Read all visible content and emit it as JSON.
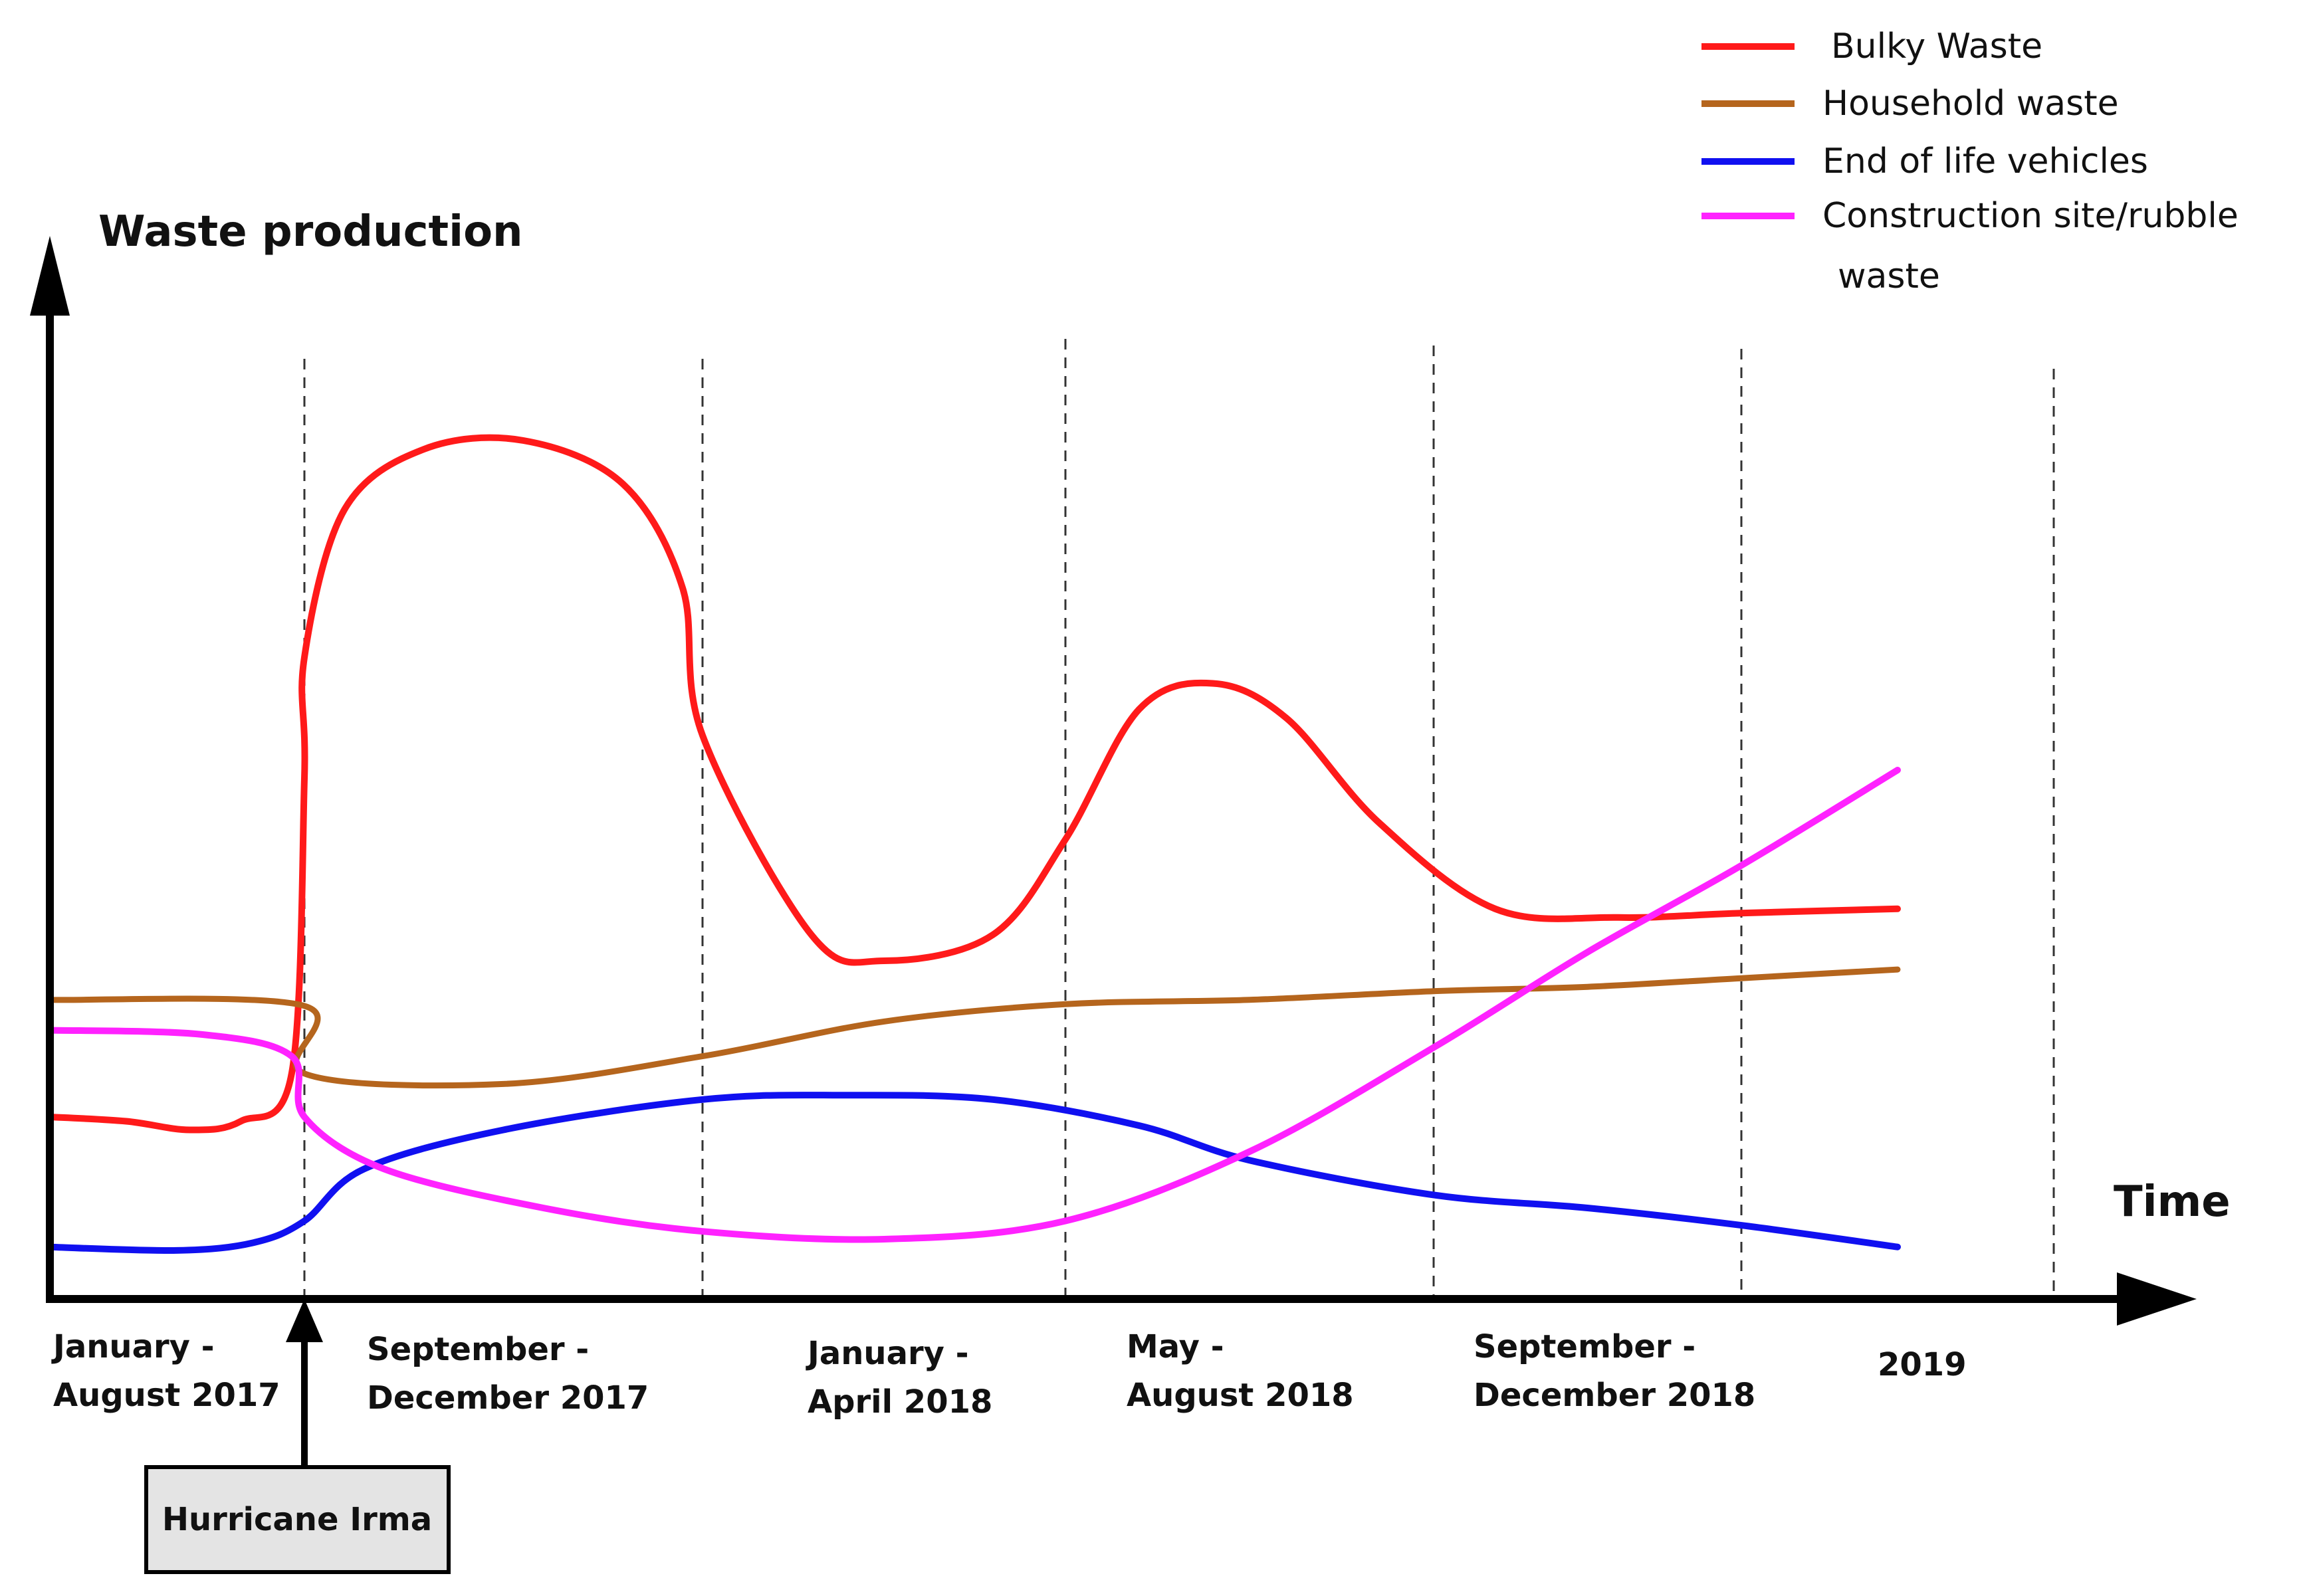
{
  "chart_data": {
    "type": "line",
    "title": "",
    "ylabel": "Waste production",
    "xlabel": "Time",
    "ylim": [
      0,
      100
    ],
    "grid": "vertical dashed separators",
    "legend_position": "top-right",
    "periods": [
      [
        "January -",
        "August 2017"
      ],
      [
        "September -",
        "December 2017"
      ],
      [
        "January -",
        "April 2018"
      ],
      [
        "May -",
        "August 2018"
      ],
      [
        "September -",
        "December 2018"
      ],
      [
        "2019"
      ]
    ],
    "event": {
      "label": "Hurricane Irma",
      "at_boundary": 1
    },
    "series": [
      {
        "name": "Bulky Waste",
        "color": "#ff1a1a",
        "points": [
          [
            0,
            21
          ],
          [
            0.3,
            20.5
          ],
          [
            0.55,
            19.5
          ],
          [
            0.75,
            20.5
          ],
          [
            0.95,
            26
          ],
          [
            1.0,
            60
          ],
          [
            1.0,
            74
          ],
          [
            1.1,
            91
          ],
          [
            1.3,
            98
          ],
          [
            1.55,
            99
          ],
          [
            1.8,
            94
          ],
          [
            1.95,
            82
          ],
          [
            2.0,
            65
          ],
          [
            2.3,
            42
          ],
          [
            2.5,
            39
          ],
          [
            2.8,
            42
          ],
          [
            3.0,
            53
          ],
          [
            3.2,
            68
          ],
          [
            3.4,
            71
          ],
          [
            3.6,
            67
          ],
          [
            3.85,
            55
          ],
          [
            4.2,
            45
          ],
          [
            4.6,
            44
          ],
          [
            5.0,
            44.5
          ],
          [
            5.5,
            45
          ]
        ]
      },
      {
        "name": "Household waste",
        "color": "#b5651d",
        "points": [
          [
            0,
            34.5
          ],
          [
            1.0,
            33.8
          ],
          [
            1.0,
            26
          ],
          [
            1.5,
            24.8
          ],
          [
            2.0,
            28
          ],
          [
            2.5,
            32
          ],
          [
            3.0,
            34
          ],
          [
            3.5,
            34.5
          ],
          [
            4.0,
            35.5
          ],
          [
            4.5,
            36
          ],
          [
            5.0,
            37
          ],
          [
            5.5,
            38
          ]
        ]
      },
      {
        "name": "End of life vehicles",
        "color": "#1010f0",
        "points": [
          [
            0,
            6
          ],
          [
            0.5,
            5.6
          ],
          [
            0.8,
            6.5
          ],
          [
            1.0,
            9
          ],
          [
            1.15,
            15
          ],
          [
            1.5,
            19.5
          ],
          [
            2.0,
            23
          ],
          [
            2.4,
            23.5
          ],
          [
            2.8,
            23
          ],
          [
            3.2,
            20
          ],
          [
            3.5,
            16
          ],
          [
            4.0,
            12
          ],
          [
            4.5,
            10.5
          ],
          [
            5.0,
            8.5
          ],
          [
            5.5,
            6
          ]
        ]
      },
      {
        "name": "Construction site/rubble waste",
        "color": "#ff22ff",
        "points": [
          [
            0,
            31
          ],
          [
            0.6,
            30.5
          ],
          [
            0.95,
            28
          ],
          [
            1.0,
            21
          ],
          [
            1.2,
            15
          ],
          [
            1.6,
            10.5
          ],
          [
            2.0,
            7.8
          ],
          [
            2.5,
            6.9
          ],
          [
            3.0,
            9
          ],
          [
            3.5,
            17
          ],
          [
            4.0,
            29
          ],
          [
            4.5,
            40
          ],
          [
            5.0,
            50
          ],
          [
            5.5,
            61
          ]
        ]
      }
    ]
  },
  "legend": {
    "items": [
      {
        "label": "Bulky Waste"
      },
      {
        "label": "Household waste"
      },
      {
        "label": "End of life vehicles"
      },
      {
        "label": "Construction site/rubble",
        "label_line2": "waste"
      }
    ]
  }
}
